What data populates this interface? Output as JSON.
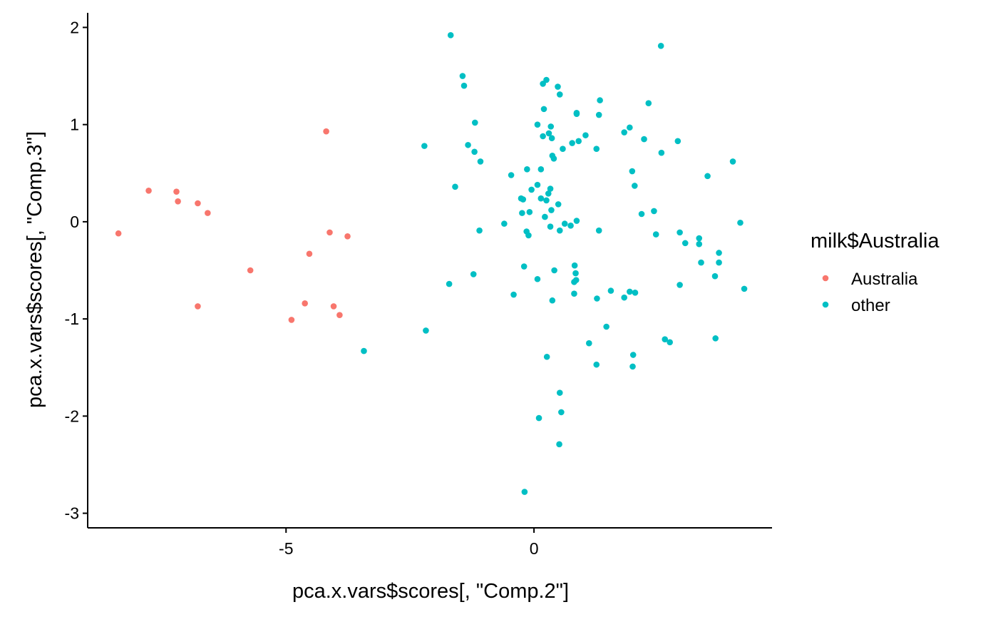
{
  "chart_data": {
    "type": "scatter",
    "xlabel": "pca.x.vars$scores[, \"Comp.2\"]",
    "ylabel": "pca.x.vars$scores[, \"Comp.3\"]",
    "xlim": [
      -9.0,
      4.8
    ],
    "ylim": [
      -3.15,
      2.15
    ],
    "x_ticks": [
      -5,
      0
    ],
    "y_ticks": [
      -3,
      -2,
      -1,
      0,
      1,
      2
    ],
    "grid": false,
    "legend": {
      "title": "milk$Australia",
      "placement": "right",
      "entries": [
        {
          "label": "Australia",
          "color": "#F8766D"
        },
        {
          "label": "other",
          "color": "#00BFC4"
        }
      ]
    },
    "series": [
      {
        "name": "Australia",
        "color": "#F8766D",
        "points": [
          [
            -8.38,
            -0.12
          ],
          [
            -7.77,
            0.32
          ],
          [
            -7.21,
            0.31
          ],
          [
            -7.18,
            0.21
          ],
          [
            -6.78,
            0.19
          ],
          [
            -6.58,
            0.09
          ],
          [
            -6.78,
            -0.87
          ],
          [
            -5.72,
            -0.5
          ],
          [
            -4.19,
            0.93
          ],
          [
            -4.12,
            -0.11
          ],
          [
            -3.76,
            -0.15
          ],
          [
            -4.53,
            -0.33
          ],
          [
            -4.62,
            -0.84
          ],
          [
            -4.04,
            -0.87
          ],
          [
            -3.92,
            -0.96
          ],
          [
            -4.89,
            -1.01
          ]
        ]
      },
      {
        "name": "other",
        "color": "#00BFC4",
        "points": [
          [
            -1.68,
            1.92
          ],
          [
            2.56,
            1.81
          ],
          [
            -1.44,
            1.5
          ],
          [
            -1.41,
            1.4
          ],
          [
            0.25,
            1.46
          ],
          [
            0.18,
            1.42
          ],
          [
            0.48,
            1.39
          ],
          [
            0.52,
            1.31
          ],
          [
            1.33,
            1.25
          ],
          [
            2.31,
            1.22
          ],
          [
            0.2,
            1.16
          ],
          [
            0.86,
            1.12
          ],
          [
            0.86,
            1.11
          ],
          [
            1.31,
            1.1
          ],
          [
            -1.19,
            1.02
          ],
          [
            0.07,
            1.0
          ],
          [
            0.34,
            0.98
          ],
          [
            1.93,
            0.97
          ],
          [
            1.82,
            0.92
          ],
          [
            0.3,
            0.91
          ],
          [
            1.04,
            0.89
          ],
          [
            0.18,
            0.88
          ],
          [
            0.36,
            0.86
          ],
          [
            0.9,
            0.83
          ],
          [
            2.9,
            0.83
          ],
          [
            2.22,
            0.85
          ],
          [
            0.77,
            0.81
          ],
          [
            -1.33,
            0.79
          ],
          [
            -2.21,
            0.78
          ],
          [
            0.58,
            0.75
          ],
          [
            1.26,
            0.75
          ],
          [
            -1.2,
            0.72
          ],
          [
            2.57,
            0.71
          ],
          [
            0.37,
            0.68
          ],
          [
            0.4,
            0.65
          ],
          [
            -1.08,
            0.62
          ],
          [
            4.01,
            0.62
          ],
          [
            0.14,
            0.54
          ],
          [
            -0.14,
            0.54
          ],
          [
            1.98,
            0.52
          ],
          [
            -0.46,
            0.48
          ],
          [
            3.5,
            0.47
          ],
          [
            2.03,
            0.37
          ],
          [
            -1.59,
            0.36
          ],
          [
            0.07,
            0.38
          ],
          [
            0.33,
            0.34
          ],
          [
            -0.05,
            0.33
          ],
          [
            0.29,
            0.29
          ],
          [
            0.14,
            0.24
          ],
          [
            -0.26,
            0.24
          ],
          [
            -0.22,
            0.23
          ],
          [
            0.25,
            0.22
          ],
          [
            0.49,
            0.18
          ],
          [
            0.35,
            0.12
          ],
          [
            -0.09,
            0.1
          ],
          [
            -0.24,
            0.09
          ],
          [
            2.42,
            0.11
          ],
          [
            2.17,
            0.08
          ],
          [
            0.22,
            0.05
          ],
          [
            0.86,
            0.01
          ],
          [
            4.16,
            -0.01
          ],
          [
            0.62,
            -0.02
          ],
          [
            0.74,
            -0.04
          ],
          [
            -0.6,
            -0.02
          ],
          [
            0.33,
            -0.05
          ],
          [
            0.52,
            -0.09
          ],
          [
            -1.1,
            -0.09
          ],
          [
            1.31,
            -0.09
          ],
          [
            -0.15,
            -0.1
          ],
          [
            -0.11,
            -0.14
          ],
          [
            3.33,
            -0.17
          ],
          [
            2.94,
            -0.11
          ],
          [
            2.46,
            -0.13
          ],
          [
            3.05,
            -0.22
          ],
          [
            3.33,
            -0.23
          ],
          [
            3.73,
            -0.32
          ],
          [
            3.73,
            -0.42
          ],
          [
            3.37,
            -0.42
          ],
          [
            0.82,
            -0.45
          ],
          [
            -0.2,
            -0.46
          ],
          [
            0.41,
            -0.5
          ],
          [
            0.84,
            -0.53
          ],
          [
            -1.22,
            -0.54
          ],
          [
            3.65,
            -0.56
          ],
          [
            0.07,
            -0.59
          ],
          [
            0.85,
            -0.6
          ],
          [
            0.81,
            -0.62
          ],
          [
            2.94,
            -0.65
          ],
          [
            -1.71,
            -0.64
          ],
          [
            4.24,
            -0.69
          ],
          [
            1.55,
            -0.71
          ],
          [
            1.93,
            -0.72
          ],
          [
            2.04,
            -0.73
          ],
          [
            0.81,
            -0.74
          ],
          [
            -0.41,
            -0.75
          ],
          [
            1.82,
            -0.78
          ],
          [
            1.27,
            -0.79
          ],
          [
            0.37,
            -0.81
          ],
          [
            1.46,
            -1.08
          ],
          [
            -2.18,
            -1.12
          ],
          [
            -3.43,
            -1.33
          ],
          [
            2.64,
            -1.21
          ],
          [
            2.74,
            -1.24
          ],
          [
            3.66,
            -1.2
          ],
          [
            1.11,
            -1.25
          ],
          [
            2.0,
            -1.37
          ],
          [
            0.26,
            -1.39
          ],
          [
            1.26,
            -1.47
          ],
          [
            1.99,
            -1.49
          ],
          [
            0.52,
            -1.76
          ],
          [
            0.55,
            -1.96
          ],
          [
            0.1,
            -2.02
          ],
          [
            0.51,
            -2.29
          ],
          [
            -0.19,
            -2.78
          ]
        ]
      }
    ]
  }
}
